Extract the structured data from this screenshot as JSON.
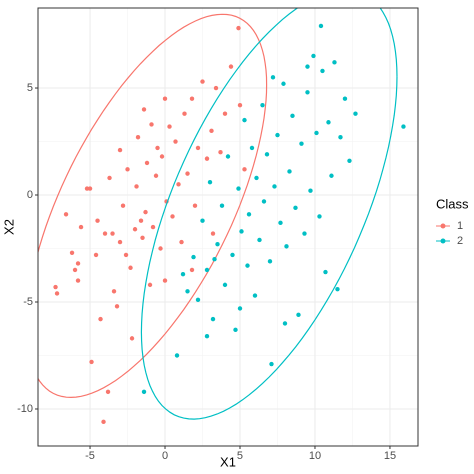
{
  "chart_data": {
    "type": "scatter",
    "x_label": "X1",
    "y_label": "X2",
    "legend_title": "Class",
    "legend_position": "right",
    "xlim": [
      -8.47,
      16.87
    ],
    "ylim": [
      -11.73,
      8.74
    ],
    "xticks": [
      -5,
      0,
      5,
      10,
      15
    ],
    "yticks": [
      -10,
      -5,
      0,
      5
    ],
    "grid": true,
    "ellipse": true,
    "series": [
      {
        "name": "1",
        "color": "#F8766D",
        "x": [
          -7.3,
          -7.2,
          -6.6,
          -6.0,
          -5.8,
          -5.6,
          -5.2,
          -5.0,
          -4.9,
          -4.6,
          -4.5,
          -4.3,
          -4.1,
          -4.0,
          -3.8,
          -3.7,
          -3.5,
          -3.4,
          -3.2,
          -3.0,
          -3.0,
          -2.8,
          -2.6,
          -2.5,
          -2.3,
          -2.2,
          -2.0,
          -1.9,
          -1.8,
          -1.6,
          -1.5,
          -1.4,
          -1.3,
          -1.2,
          -1.0,
          -0.9,
          -0.8,
          -0.6,
          -0.5,
          -0.3,
          -0.2,
          0,
          0.1,
          0.3,
          0.5,
          0.7,
          0.9,
          1.1,
          1.3,
          1.5,
          1.8,
          2.0,
          2.2,
          2.5,
          2.8,
          3.1,
          3.4,
          3.7,
          4.0,
          4.4,
          4.9,
          5.0,
          5.3,
          3.2,
          -5.8,
          -6.2,
          0.0,
          1.8
        ],
        "values": [
          -4.3,
          -4.6,
          -0.9,
          -3.5,
          -3.2,
          -1.5,
          0.3,
          0.3,
          -7.8,
          -2.8,
          -1.2,
          -5.8,
          -10.6,
          -1.8,
          -9.2,
          0.8,
          -1.8,
          -4.5,
          -5.2,
          2.1,
          -2.2,
          -0.5,
          -2.8,
          1.2,
          -3.4,
          -6.7,
          -1.6,
          0.4,
          2.7,
          -1.2,
          -2.0,
          4.0,
          -0.8,
          1.5,
          -4.2,
          3.3,
          -1.5,
          0.9,
          2.2,
          -2.5,
          1.8,
          4.5,
          -0.3,
          3.2,
          -1.0,
          2.5,
          0.5,
          -2.2,
          3.8,
          1.0,
          4.5,
          -0.5,
          2.2,
          5.3,
          1.7,
          3.0,
          5.0,
          2.0,
          3.8,
          6.0,
          7.8,
          4.2,
          1.2,
          -1.8,
          -4.0,
          -2.7,
          -4.0,
          -3.5
        ]
      },
      {
        "name": "2",
        "color": "#00BFC4",
        "x": [
          -1.4,
          0.8,
          1.2,
          1.5,
          1.9,
          2.2,
          2.5,
          2.8,
          3.0,
          3.2,
          3.5,
          3.8,
          4.0,
          4.2,
          4.5,
          4.7,
          4.9,
          5.1,
          5.3,
          5.5,
          5.6,
          5.8,
          6.0,
          6.1,
          6.3,
          6.5,
          6.6,
          6.8,
          7.0,
          7.1,
          7.3,
          7.5,
          7.7,
          7.9,
          8.1,
          8.3,
          8.5,
          8.7,
          8.9,
          9.1,
          9.3,
          9.5,
          9.7,
          9.9,
          10.1,
          10.3,
          10.5,
          10.7,
          10.9,
          11.1,
          11.3,
          11.5,
          11.7,
          12.0,
          12.3,
          12.7,
          15.9,
          10.4,
          9.5,
          7.2,
          2.8,
          3.3,
          5.0,
          8.0
        ],
        "values": [
          -9.2,
          -7.5,
          -3.7,
          -4.5,
          -2.9,
          -4.9,
          -1.2,
          -3.5,
          0.6,
          -5.8,
          -2.3,
          -0.5,
          -4.2,
          1.8,
          -2.8,
          -6.3,
          0.3,
          -1.7,
          3.5,
          -3.3,
          -0.9,
          2.2,
          -4.7,
          0.8,
          -2.1,
          4.2,
          -0.3,
          1.9,
          -3.1,
          -7.9,
          0.4,
          2.8,
          -1.3,
          5.2,
          -2.4,
          1.1,
          3.7,
          -0.6,
          -5.6,
          2.4,
          -1.8,
          4.8,
          0.2,
          6.5,
          2.9,
          -1.0,
          5.8,
          -3.6,
          3.4,
          0.9,
          6.2,
          -4.4,
          2.7,
          4.5,
          1.6,
          3.8,
          3.2,
          7.9,
          6.0,
          5.5,
          -6.6,
          -3.0,
          -5.3,
          -6.0
        ]
      }
    ]
  }
}
